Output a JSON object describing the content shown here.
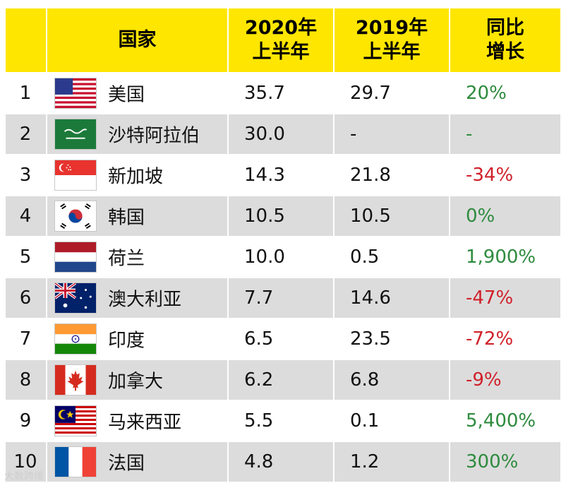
{
  "header": {
    "rank": "",
    "country": "国家",
    "h2020": "2020年\n上半年",
    "h2019": "2019年\n上半年",
    "growth": "同比\n增长"
  },
  "rows": [
    {
      "rank": "1",
      "flag_icon": "usa-flag-icon",
      "country": "美国",
      "h2020": "35.7",
      "h2019": "29.7",
      "growth": "20%",
      "growth_sign": "pos"
    },
    {
      "rank": "2",
      "flag_icon": "saudi-arabia-flag-icon",
      "country": "沙特阿拉伯",
      "h2020": "30.0",
      "h2019": "-",
      "growth": "-",
      "growth_sign": "neu"
    },
    {
      "rank": "3",
      "flag_icon": "singapore-flag-icon",
      "country": "新加坡",
      "h2020": "14.3",
      "h2019": "21.8",
      "growth": "-34%",
      "growth_sign": "neg"
    },
    {
      "rank": "4",
      "flag_icon": "south-korea-flag-icon",
      "country": "韩国",
      "h2020": "10.5",
      "h2019": "10.5",
      "growth": "0%",
      "growth_sign": "pos"
    },
    {
      "rank": "5",
      "flag_icon": "netherlands-flag-icon",
      "country": "荷兰",
      "h2020": "10.0",
      "h2019": "0.5",
      "growth": "1,900%",
      "growth_sign": "pos"
    },
    {
      "rank": "6",
      "flag_icon": "australia-flag-icon",
      "country": "澳大利亚",
      "h2020": "7.7",
      "h2019": "14.6",
      "growth": "-47%",
      "growth_sign": "neg"
    },
    {
      "rank": "7",
      "flag_icon": "india-flag-icon",
      "country": "印度",
      "h2020": "6.5",
      "h2019": "23.5",
      "growth": "-72%",
      "growth_sign": "neg"
    },
    {
      "rank": "8",
      "flag_icon": "canada-flag-icon",
      "country": "加拿大",
      "h2020": "6.2",
      "h2019": "6.8",
      "growth": "-9%",
      "growth_sign": "neg"
    },
    {
      "rank": "9",
      "flag_icon": "malaysia-flag-icon",
      "country": "马来西亚",
      "h2020": "5.5",
      "h2019": "0.1",
      "growth": "5,400%",
      "growth_sign": "pos"
    },
    {
      "rank": "10",
      "flag_icon": "france-flag-icon",
      "country": "法国",
      "h2020": "4.8",
      "h2019": "1.2",
      "growth": "300%",
      "growth_sign": "pos"
    }
  ],
  "colors": {
    "header_bg": "#fee600",
    "row_shade": "#dcdcdc",
    "positive": "#2e8b3e",
    "negative": "#d0202a"
  },
  "watermark": "大数跨境"
}
